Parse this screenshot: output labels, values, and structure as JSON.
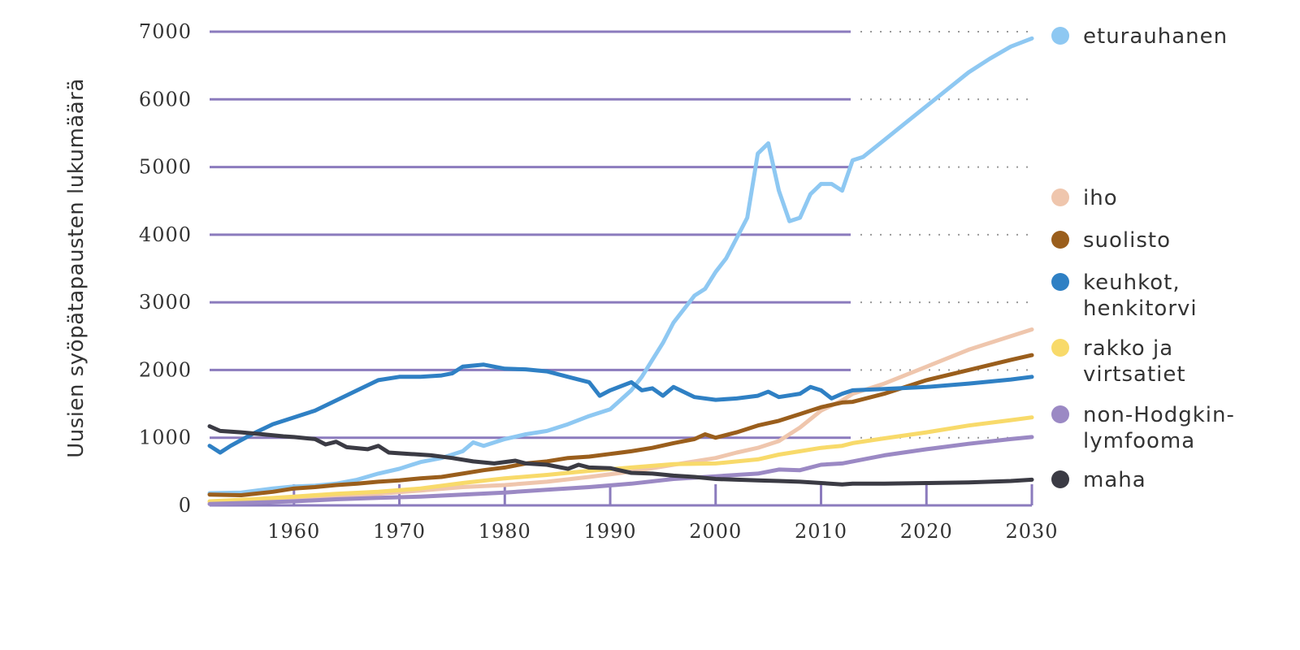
{
  "chart_data": {
    "type": "line",
    "title": "",
    "xlabel": "",
    "ylabel": "Uusien syöpätapausten lukumäärä",
    "xlim": [
      1952,
      2030
    ],
    "ylim": [
      0,
      7000
    ],
    "x_ticks": [
      "1960",
      "1970",
      "1980",
      "1990",
      "2000",
      "2010",
      "2020",
      "2030"
    ],
    "y_ticks": [
      "0",
      "1000",
      "2000",
      "3000",
      "4000",
      "5000",
      "6000",
      "7000"
    ],
    "grid": "horizontal",
    "observed_until": 2013,
    "legend_placement": "right",
    "series": [
      {
        "name": "eturauhanen",
        "label_lines": [
          "eturauhanen"
        ],
        "color": "#8ec8f2",
        "points": [
          [
            1952,
            180
          ],
          [
            1955,
            190
          ],
          [
            1958,
            250
          ],
          [
            1960,
            280
          ],
          [
            1962,
            290
          ],
          [
            1964,
            320
          ],
          [
            1966,
            380
          ],
          [
            1968,
            470
          ],
          [
            1970,
            540
          ],
          [
            1972,
            640
          ],
          [
            1974,
            700
          ],
          [
            1976,
            800
          ],
          [
            1977,
            930
          ],
          [
            1978,
            880
          ],
          [
            1980,
            980
          ],
          [
            1982,
            1050
          ],
          [
            1984,
            1100
          ],
          [
            1986,
            1200
          ],
          [
            1988,
            1320
          ],
          [
            1990,
            1420
          ],
          [
            1991,
            1560
          ],
          [
            1992,
            1700
          ],
          [
            1993,
            1900
          ],
          [
            1994,
            2150
          ],
          [
            1995,
            2400
          ],
          [
            1996,
            2700
          ],
          [
            1997,
            2900
          ],
          [
            1998,
            3100
          ],
          [
            1999,
            3200
          ],
          [
            2000,
            3450
          ],
          [
            2001,
            3650
          ],
          [
            2002,
            3950
          ],
          [
            2003,
            4250
          ],
          [
            2004,
            5200
          ],
          [
            2005,
            5350
          ],
          [
            2006,
            4650
          ],
          [
            2007,
            4200
          ],
          [
            2008,
            4250
          ],
          [
            2009,
            4600
          ],
          [
            2010,
            4750
          ],
          [
            2011,
            4750
          ],
          [
            2012,
            4650
          ],
          [
            2013,
            5100
          ],
          [
            2014,
            5150
          ],
          [
            2016,
            5400
          ],
          [
            2018,
            5650
          ],
          [
            2020,
            5900
          ],
          [
            2022,
            6150
          ],
          [
            2024,
            6400
          ],
          [
            2026,
            6600
          ],
          [
            2028,
            6780
          ],
          [
            2030,
            6900
          ]
        ]
      },
      {
        "name": "iho",
        "label_lines": [
          "iho"
        ],
        "color": "#efc6ad",
        "points": [
          [
            1952,
            50
          ],
          [
            1956,
            70
          ],
          [
            1960,
            100
          ],
          [
            1964,
            130
          ],
          [
            1968,
            170
          ],
          [
            1972,
            220
          ],
          [
            1976,
            270
          ],
          [
            1980,
            300
          ],
          [
            1984,
            350
          ],
          [
            1988,
            420
          ],
          [
            1992,
            500
          ],
          [
            1996,
            600
          ],
          [
            2000,
            700
          ],
          [
            2002,
            780
          ],
          [
            2004,
            850
          ],
          [
            2006,
            950
          ],
          [
            2008,
            1150
          ],
          [
            2010,
            1400
          ],
          [
            2012,
            1550
          ],
          [
            2013,
            1650
          ],
          [
            2016,
            1800
          ],
          [
            2020,
            2050
          ],
          [
            2024,
            2300
          ],
          [
            2028,
            2500
          ],
          [
            2030,
            2600
          ]
        ]
      },
      {
        "name": "suolisto",
        "label_lines": [
          "suolisto"
        ],
        "color": "#9a5e1c",
        "points": [
          [
            1952,
            160
          ],
          [
            1955,
            150
          ],
          [
            1958,
            200
          ],
          [
            1960,
            250
          ],
          [
            1962,
            270
          ],
          [
            1964,
            300
          ],
          [
            1966,
            320
          ],
          [
            1968,
            350
          ],
          [
            1970,
            370
          ],
          [
            1972,
            400
          ],
          [
            1974,
            420
          ],
          [
            1976,
            470
          ],
          [
            1978,
            520
          ],
          [
            1980,
            560
          ],
          [
            1982,
            620
          ],
          [
            1984,
            650
          ],
          [
            1986,
            700
          ],
          [
            1988,
            720
          ],
          [
            1990,
            760
          ],
          [
            1992,
            800
          ],
          [
            1994,
            850
          ],
          [
            1996,
            920
          ],
          [
            1998,
            980
          ],
          [
            1999,
            1050
          ],
          [
            2000,
            1000
          ],
          [
            2002,
            1080
          ],
          [
            2004,
            1180
          ],
          [
            2006,
            1250
          ],
          [
            2008,
            1350
          ],
          [
            2010,
            1450
          ],
          [
            2012,
            1520
          ],
          [
            2013,
            1530
          ],
          [
            2016,
            1650
          ],
          [
            2020,
            1850
          ],
          [
            2024,
            2000
          ],
          [
            2028,
            2150
          ],
          [
            2030,
            2220
          ]
        ]
      },
      {
        "name": "keuhkot, henkitorvi",
        "label_lines": [
          "keuhkot,",
          "henkitorvi"
        ],
        "color": "#2f80c4",
        "points": [
          [
            1952,
            880
          ],
          [
            1953,
            780
          ],
          [
            1954,
            880
          ],
          [
            1956,
            1050
          ],
          [
            1958,
            1200
          ],
          [
            1960,
            1300
          ],
          [
            1962,
            1400
          ],
          [
            1964,
            1550
          ],
          [
            1966,
            1700
          ],
          [
            1968,
            1850
          ],
          [
            1970,
            1900
          ],
          [
            1972,
            1900
          ],
          [
            1974,
            1920
          ],
          [
            1975,
            1950
          ],
          [
            1976,
            2050
          ],
          [
            1978,
            2080
          ],
          [
            1980,
            2020
          ],
          [
            1982,
            2010
          ],
          [
            1984,
            1980
          ],
          [
            1986,
            1900
          ],
          [
            1988,
            1820
          ],
          [
            1989,
            1620
          ],
          [
            1990,
            1700
          ],
          [
            1992,
            1820
          ],
          [
            1993,
            1700
          ],
          [
            1994,
            1730
          ],
          [
            1995,
            1620
          ],
          [
            1996,
            1750
          ],
          [
            1998,
            1600
          ],
          [
            2000,
            1560
          ],
          [
            2002,
            1580
          ],
          [
            2004,
            1620
          ],
          [
            2005,
            1680
          ],
          [
            2006,
            1600
          ],
          [
            2008,
            1650
          ],
          [
            2009,
            1750
          ],
          [
            2010,
            1700
          ],
          [
            2011,
            1580
          ],
          [
            2012,
            1650
          ],
          [
            2013,
            1700
          ],
          [
            2016,
            1720
          ],
          [
            2020,
            1750
          ],
          [
            2024,
            1800
          ],
          [
            2028,
            1860
          ],
          [
            2030,
            1900
          ]
        ]
      },
      {
        "name": "rakko ja virtsatiet",
        "label_lines": [
          "rakko ja",
          "virtsatiet"
        ],
        "color": "#f8da6a",
        "points": [
          [
            1952,
            60
          ],
          [
            1956,
            90
          ],
          [
            1960,
            130
          ],
          [
            1964,
            170
          ],
          [
            1968,
            200
          ],
          [
            1972,
            250
          ],
          [
            1976,
            330
          ],
          [
            1980,
            400
          ],
          [
            1984,
            450
          ],
          [
            1988,
            510
          ],
          [
            1992,
            560
          ],
          [
            1996,
            610
          ],
          [
            2000,
            620
          ],
          [
            2004,
            680
          ],
          [
            2006,
            750
          ],
          [
            2008,
            800
          ],
          [
            2010,
            850
          ],
          [
            2012,
            880
          ],
          [
            2013,
            920
          ],
          [
            2016,
            990
          ],
          [
            2020,
            1080
          ],
          [
            2024,
            1180
          ],
          [
            2028,
            1260
          ],
          [
            2030,
            1300
          ]
        ]
      },
      {
        "name": "non-Hodgkin-lymfooma",
        "label_lines": [
          "non-Hodgkin-",
          "lymfooma"
        ],
        "color": "#9b89c4",
        "points": [
          [
            1952,
            20
          ],
          [
            1956,
            40
          ],
          [
            1960,
            60
          ],
          [
            1964,
            90
          ],
          [
            1968,
            110
          ],
          [
            1972,
            130
          ],
          [
            1976,
            160
          ],
          [
            1980,
            190
          ],
          [
            1984,
            230
          ],
          [
            1988,
            270
          ],
          [
            1992,
            320
          ],
          [
            1996,
            390
          ],
          [
            2000,
            430
          ],
          [
            2004,
            470
          ],
          [
            2006,
            530
          ],
          [
            2008,
            520
          ],
          [
            2010,
            600
          ],
          [
            2012,
            620
          ],
          [
            2013,
            650
          ],
          [
            2016,
            740
          ],
          [
            2020,
            830
          ],
          [
            2024,
            910
          ],
          [
            2028,
            980
          ],
          [
            2030,
            1010
          ]
        ]
      },
      {
        "name": "maha",
        "label_lines": [
          "maha"
        ],
        "color": "#3b3b44",
        "points": [
          [
            1952,
            1170
          ],
          [
            1953,
            1100
          ],
          [
            1955,
            1080
          ],
          [
            1957,
            1050
          ],
          [
            1959,
            1020
          ],
          [
            1960,
            1010
          ],
          [
            1962,
            980
          ],
          [
            1963,
            900
          ],
          [
            1964,
            940
          ],
          [
            1965,
            860
          ],
          [
            1967,
            830
          ],
          [
            1968,
            880
          ],
          [
            1969,
            780
          ],
          [
            1971,
            760
          ],
          [
            1973,
            740
          ],
          [
            1975,
            700
          ],
          [
            1977,
            650
          ],
          [
            1979,
            620
          ],
          [
            1981,
            660
          ],
          [
            1982,
            620
          ],
          [
            1984,
            600
          ],
          [
            1986,
            540
          ],
          [
            1987,
            600
          ],
          [
            1988,
            560
          ],
          [
            1990,
            550
          ],
          [
            1992,
            480
          ],
          [
            1994,
            470
          ],
          [
            1996,
            440
          ],
          [
            1998,
            420
          ],
          [
            2000,
            390
          ],
          [
            2002,
            380
          ],
          [
            2004,
            370
          ],
          [
            2006,
            360
          ],
          [
            2008,
            350
          ],
          [
            2010,
            330
          ],
          [
            2012,
            310
          ],
          [
            2013,
            320
          ],
          [
            2016,
            320
          ],
          [
            2020,
            330
          ],
          [
            2024,
            340
          ],
          [
            2028,
            360
          ],
          [
            2030,
            380
          ]
        ]
      }
    ]
  }
}
